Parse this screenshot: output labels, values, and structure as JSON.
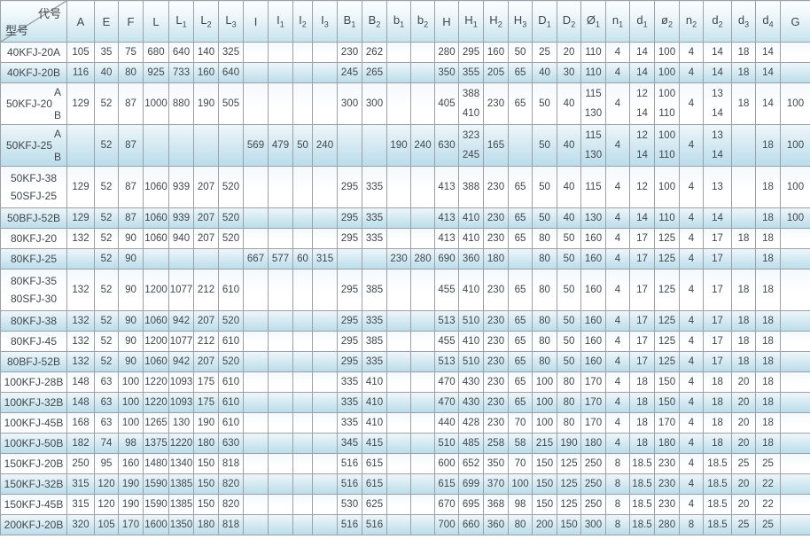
{
  "colors": {
    "grid": "#9ba1a6",
    "band_blue": "#b9dcea",
    "header_blue": "#c6e3ee",
    "text": "#41474b"
  },
  "corner": {
    "top_right": "代号",
    "bottom_left": "型号"
  },
  "columns": [
    {
      "base": "A",
      "sub": ""
    },
    {
      "base": "E",
      "sub": ""
    },
    {
      "base": "F",
      "sub": ""
    },
    {
      "base": "L",
      "sub": ""
    },
    {
      "base": "L",
      "sub": "1"
    },
    {
      "base": "L",
      "sub": "2"
    },
    {
      "base": "L",
      "sub": "3"
    },
    {
      "base": "I",
      "sub": ""
    },
    {
      "base": "I",
      "sub": "1"
    },
    {
      "base": "I",
      "sub": "2"
    },
    {
      "base": "I",
      "sub": "3"
    },
    {
      "base": "B",
      "sub": "1"
    },
    {
      "base": "B",
      "sub": "2"
    },
    {
      "base": "b",
      "sub": "1"
    },
    {
      "base": "b",
      "sub": "2"
    },
    {
      "base": "H",
      "sub": ""
    },
    {
      "base": "H",
      "sub": "1"
    },
    {
      "base": "H",
      "sub": "2"
    },
    {
      "base": "H",
      "sub": "3"
    },
    {
      "base": "D",
      "sub": "1"
    },
    {
      "base": "D",
      "sub": "2"
    },
    {
      "base": "Ø",
      "sub": "1"
    },
    {
      "base": "n",
      "sub": "1"
    },
    {
      "base": "d",
      "sub": "1"
    },
    {
      "base": "ø",
      "sub": "2"
    },
    {
      "base": "n",
      "sub": "2"
    },
    {
      "base": "d",
      "sub": "2"
    },
    {
      "base": "d",
      "sub": "3"
    },
    {
      "base": "d",
      "sub": "4"
    },
    {
      "base": "G",
      "sub": ""
    }
  ],
  "rows": [
    {
      "model": {
        "lines": [
          "40KFJ-20A"
        ]
      },
      "tall": false,
      "values": [
        "105",
        "35",
        "75",
        "680",
        "640",
        "140",
        "325",
        "",
        "",
        "",
        "",
        "230",
        "262",
        "",
        "",
        "280",
        "295",
        "160",
        "50",
        "25",
        "20",
        "110",
        "4",
        "14",
        "100",
        "4",
        "14",
        "18",
        "14",
        ""
      ]
    },
    {
      "model": {
        "lines": [
          "40KFJ-20B"
        ]
      },
      "tall": false,
      "values": [
        "116",
        "40",
        "80",
        "925",
        "733",
        "160",
        "640",
        "",
        "",
        "",
        "",
        "245",
        "265",
        "",
        "",
        "350",
        "355",
        "205",
        "65",
        "40",
        "30",
        "110",
        "4",
        "14",
        "100",
        "4",
        "14",
        "18",
        "14",
        ""
      ]
    },
    {
      "model": {
        "lines": [
          "50KFJ-20"
        ],
        "variants": [
          "A",
          "B"
        ]
      },
      "tall": true,
      "values": [
        "129",
        "52",
        "87",
        "1000",
        "880",
        "190",
        "505",
        "",
        "",
        "",
        "",
        "300",
        "300",
        "",
        "",
        "405",
        [
          "388",
          "410"
        ],
        "230",
        "65",
        "50",
        "40",
        [
          "115",
          "130"
        ],
        "4",
        [
          "12",
          "14"
        ],
        [
          "100",
          "110"
        ],
        "4",
        [
          "13",
          "14"
        ],
        "18",
        "14",
        "100"
      ]
    },
    {
      "model": {
        "lines": [
          "50KFJ-25"
        ],
        "variants": [
          "A",
          "B"
        ]
      },
      "tall": true,
      "values": [
        "",
        "52",
        "87",
        "",
        "",
        "",
        "",
        "569",
        "479",
        "50",
        "240",
        "",
        "",
        "190",
        "240",
        "630",
        [
          "323",
          "245"
        ],
        "165",
        "",
        "50",
        "40",
        [
          "115",
          "130"
        ],
        "4",
        [
          "12",
          "14"
        ],
        [
          "100",
          "110"
        ],
        "4",
        [
          "13",
          "14"
        ],
        "",
        "18",
        "100"
      ]
    },
    {
      "model": {
        "lines": [
          "50KFJ-38",
          "50SFJ-25"
        ]
      },
      "tall": true,
      "values": [
        "129",
        "52",
        "87",
        "1060",
        "939",
        "207",
        "520",
        "",
        "",
        "",
        "",
        "295",
        "335",
        "",
        "",
        "413",
        "388",
        "230",
        "65",
        "50",
        "40",
        "115",
        "4",
        "12",
        "100",
        "4",
        "13",
        "",
        "18",
        "100"
      ]
    },
    {
      "model": {
        "lines": [
          "50BFJ-52B"
        ]
      },
      "tall": false,
      "values": [
        "129",
        "52",
        "87",
        "1060",
        "939",
        "207",
        "520",
        "",
        "",
        "",
        "",
        "295",
        "335",
        "",
        "",
        "413",
        "410",
        "230",
        "65",
        "50",
        "40",
        "130",
        "4",
        "14",
        "110",
        "4",
        "14",
        "",
        "18",
        "100"
      ]
    },
    {
      "model": {
        "lines": [
          "80KFJ-20"
        ]
      },
      "tall": false,
      "values": [
        "132",
        "52",
        "90",
        "1060",
        "940",
        "207",
        "520",
        "",
        "",
        "",
        "",
        "295",
        "335",
        "",
        "",
        "413",
        "410",
        "230",
        "65",
        "80",
        "50",
        "160",
        "4",
        "17",
        "125",
        "4",
        "17",
        "18",
        "18",
        ""
      ]
    },
    {
      "model": {
        "lines": [
          "80KFJ-25"
        ]
      },
      "tall": false,
      "values": [
        "",
        "52",
        "90",
        "",
        "",
        "",
        "",
        "667",
        "577",
        "60",
        "315",
        "",
        "",
        "230",
        "280",
        "690",
        "360",
        "180",
        "",
        "80",
        "50",
        "160",
        "4",
        "17",
        "125",
        "4",
        "17",
        "",
        "18",
        ""
      ]
    },
    {
      "model": {
        "lines": [
          "80KFJ-35",
          "80SFJ-30"
        ]
      },
      "tall": true,
      "values": [
        "132",
        "52",
        "90",
        "1200",
        "1077",
        "212",
        "610",
        "",
        "",
        "",
        "",
        "295",
        "385",
        "",
        "",
        "455",
        "410",
        "230",
        "65",
        "80",
        "50",
        "160",
        "4",
        "17",
        "125",
        "4",
        "17",
        "18",
        "18",
        ""
      ]
    },
    {
      "model": {
        "lines": [
          "80KFJ-38"
        ]
      },
      "tall": false,
      "values": [
        "132",
        "52",
        "90",
        "1060",
        "942",
        "207",
        "520",
        "",
        "",
        "",
        "",
        "295",
        "335",
        "",
        "",
        "513",
        "510",
        "230",
        "65",
        "80",
        "50",
        "160",
        "4",
        "17",
        "125",
        "4",
        "17",
        "18",
        "18",
        ""
      ]
    },
    {
      "model": {
        "lines": [
          "80KFJ-45"
        ]
      },
      "tall": false,
      "values": [
        "132",
        "52",
        "90",
        "1200",
        "1077",
        "212",
        "610",
        "",
        "",
        "",
        "",
        "295",
        "385",
        "",
        "",
        "455",
        "410",
        "230",
        "65",
        "80",
        "50",
        "160",
        "4",
        "17",
        "125",
        "4",
        "17",
        "18",
        "18",
        ""
      ]
    },
    {
      "model": {
        "lines": [
          "80BFJ-52B"
        ]
      },
      "tall": false,
      "values": [
        "132",
        "52",
        "90",
        "1060",
        "942",
        "207",
        "520",
        "",
        "",
        "",
        "",
        "295",
        "335",
        "",
        "",
        "513",
        "510",
        "230",
        "65",
        "80",
        "50",
        "160",
        "4",
        "17",
        "125",
        "4",
        "17",
        "18",
        "18",
        ""
      ]
    },
    {
      "model": {
        "lines": [
          "100KFJ-28B"
        ]
      },
      "tall": false,
      "values": [
        "148",
        "63",
        "100",
        "1220",
        "1093",
        "175",
        "610",
        "",
        "",
        "",
        "",
        "335",
        "410",
        "",
        "",
        "470",
        "430",
        "230",
        "65",
        "100",
        "80",
        "170",
        "4",
        "18",
        "150",
        "4",
        "18",
        "20",
        "18",
        ""
      ]
    },
    {
      "model": {
        "lines": [
          "100KFJ-32B"
        ]
      },
      "tall": false,
      "values": [
        "148",
        "63",
        "100",
        "1220",
        "1093",
        "175",
        "610",
        "",
        "",
        "",
        "",
        "335",
        "410",
        "",
        "",
        "470",
        "430",
        "230",
        "65",
        "100",
        "80",
        "170",
        "4",
        "18",
        "150",
        "4",
        "18",
        "20",
        "18",
        ""
      ]
    },
    {
      "model": {
        "lines": [
          "100KFJ-45B"
        ]
      },
      "tall": false,
      "values": [
        "168",
        "63",
        "100",
        "1265",
        "130",
        "190",
        "610",
        "",
        "",
        "",
        "",
        "335",
        "410",
        "",
        "",
        "440",
        "428",
        "230",
        "70",
        "100",
        "80",
        "170",
        "4",
        "18",
        "170",
        "4",
        "18",
        "20",
        "18",
        ""
      ]
    },
    {
      "model": {
        "lines": [
          "100KFJ-50B"
        ]
      },
      "tall": false,
      "values": [
        "182",
        "74",
        "98",
        "1375",
        "1220",
        "180",
        "630",
        "",
        "",
        "",
        "",
        "345",
        "415",
        "",
        "",
        "510",
        "485",
        "258",
        "58",
        "215",
        "190",
        "180",
        "4",
        "18",
        "180",
        "4",
        "18",
        "20",
        "18",
        ""
      ]
    },
    {
      "model": {
        "lines": [
          "150KFJ-20B"
        ]
      },
      "tall": false,
      "values": [
        "250",
        "95",
        "160",
        "1480",
        "1340",
        "150",
        "818",
        "",
        "",
        "",
        "",
        "516",
        "615",
        "",
        "",
        "600",
        "652",
        "350",
        "70",
        "150",
        "125",
        "250",
        "8",
        "18.5",
        "230",
        "4",
        "18.5",
        "25",
        "25",
        ""
      ]
    },
    {
      "model": {
        "lines": [
          "150KFJ-32B"
        ]
      },
      "tall": false,
      "values": [
        "315",
        "120",
        "190",
        "1590",
        "1385",
        "150",
        "820",
        "",
        "",
        "",
        "",
        "516",
        "615",
        "",
        "",
        "615",
        "699",
        "370",
        "100",
        "150",
        "125",
        "250",
        "8",
        "18.5",
        "230",
        "4",
        "18.5",
        "20",
        "22",
        ""
      ]
    },
    {
      "model": {
        "lines": [
          "150KFJ-45B"
        ]
      },
      "tall": false,
      "values": [
        "315",
        "120",
        "190",
        "1590",
        "1385",
        "150",
        "820",
        "",
        "",
        "",
        "",
        "530",
        "625",
        "",
        "",
        "670",
        "695",
        "368",
        "98",
        "150",
        "125",
        "250",
        "8",
        "18.5",
        "230",
        "4",
        "18.5",
        "20",
        "22",
        ""
      ]
    },
    {
      "model": {
        "lines": [
          "200KFJ-20B"
        ]
      },
      "tall": false,
      "values": [
        "320",
        "105",
        "170",
        "1600",
        "1350",
        "180",
        "818",
        "",
        "",
        "",
        "",
        "516",
        "516",
        "",
        "",
        "700",
        "660",
        "360",
        "80",
        "200",
        "150",
        "300",
        "8",
        "18.5",
        "280",
        "8",
        "18.5",
        "25",
        "25",
        ""
      ]
    }
  ]
}
